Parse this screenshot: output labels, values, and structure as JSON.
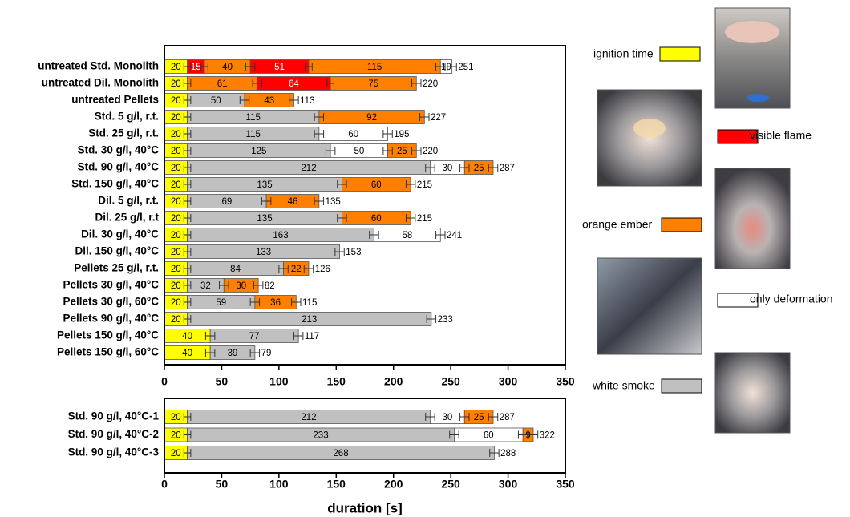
{
  "chart_data": [
    {
      "type": "bar",
      "orientation": "horizontal",
      "stacked": true,
      "series": [
        {
          "name": "ignition time",
          "color": "#ffff00"
        },
        {
          "name": "visible flame",
          "color": "#ff0000"
        },
        {
          "name": "orange ember",
          "color": "#ff7f00"
        },
        {
          "name": "only deformation",
          "color": "#ffffff"
        },
        {
          "name": "white smoke",
          "color": "#c0c0c0"
        }
      ],
      "xlim": [
        0,
        350
      ],
      "xticks": [
        0,
        50,
        100,
        150,
        200,
        250,
        300,
        350
      ],
      "rows": [
        {
          "label": "untreated Std. Monolith",
          "total": 251,
          "segments": [
            {
              "series": 0,
              "value": 20,
              "error": 3
            },
            {
              "series": 1,
              "value": 15,
              "error": 3
            },
            {
              "series": 2,
              "value": 40,
              "error": 4
            },
            {
              "series": 1,
              "value": 51,
              "error": 3
            },
            {
              "series": 2,
              "value": 115,
              "error": 4
            },
            {
              "series": 3,
              "value": 10,
              "error": 4
            }
          ]
        },
        {
          "label": "untreated Dil. Monolith",
          "total": 220,
          "segments": [
            {
              "series": 0,
              "value": 20,
              "error": 3
            },
            {
              "series": 2,
              "value": 61,
              "error": 4
            },
            {
              "series": 1,
              "value": 64,
              "error": 3
            },
            {
              "series": 2,
              "value": 75,
              "error": 4
            }
          ]
        },
        {
          "label": "untreated Pellets",
          "total": 113,
          "segments": [
            {
              "series": 0,
              "value": 20,
              "error": 3
            },
            {
              "series": 4,
              "value": 50,
              "error": 4
            },
            {
              "series": 2,
              "value": 43,
              "error": 4
            }
          ]
        },
        {
          "label": "Std. 5 g/l, r.t.",
          "total": 227,
          "segments": [
            {
              "series": 0,
              "value": 20,
              "error": 3
            },
            {
              "series": 4,
              "value": 115,
              "error": 4
            },
            {
              "series": 2,
              "value": 92,
              "error": 4
            }
          ]
        },
        {
          "label": "Std. 25 g/l, r.t.",
          "total": 195,
          "segments": [
            {
              "series": 0,
              "value": 20,
              "error": 3
            },
            {
              "series": 4,
              "value": 115,
              "error": 4
            },
            {
              "series": 3,
              "value": 60,
              "error": 4
            }
          ]
        },
        {
          "label": "Std. 30 g/l, 40°C",
          "total": 220,
          "segments": [
            {
              "series": 0,
              "value": 20,
              "error": 3
            },
            {
              "series": 4,
              "value": 125,
              "error": 4
            },
            {
              "series": 3,
              "value": 50,
              "error": 4
            },
            {
              "series": 2,
              "value": 25,
              "error": 4
            }
          ]
        },
        {
          "label": "Std. 90 g/l, 40°C",
          "total": 287,
          "segments": [
            {
              "series": 0,
              "value": 20,
              "error": 3
            },
            {
              "series": 4,
              "value": 212,
              "error": 4
            },
            {
              "series": 3,
              "value": 30,
              "error": 4
            },
            {
              "series": 2,
              "value": 25,
              "error": 4
            }
          ]
        },
        {
          "label": "Std. 150 g/l, 40°C",
          "total": 215,
          "segments": [
            {
              "series": 0,
              "value": 20,
              "error": 3
            },
            {
              "series": 4,
              "value": 135,
              "error": 4
            },
            {
              "series": 2,
              "value": 60,
              "error": 4
            }
          ]
        },
        {
          "label": "Dil. 5 g/l, r.t.",
          "total": 135,
          "segments": [
            {
              "series": 0,
              "value": 20,
              "error": 3
            },
            {
              "series": 4,
              "value": 69,
              "error": 4
            },
            {
              "series": 2,
              "value": 46,
              "error": 4
            }
          ]
        },
        {
          "label": "Dil. 25 g/l, r.t",
          "total": 215,
          "segments": [
            {
              "series": 0,
              "value": 20,
              "error": 3
            },
            {
              "series": 4,
              "value": 135,
              "error": 4
            },
            {
              "series": 2,
              "value": 60,
              "error": 4
            }
          ]
        },
        {
          "label": "Dil. 30 g/l, 40°C",
          "total": 241,
          "segments": [
            {
              "series": 0,
              "value": 20,
              "error": 3
            },
            {
              "series": 4,
              "value": 163,
              "error": 4
            },
            {
              "series": 3,
              "value": 58,
              "error": 4
            }
          ]
        },
        {
          "label": "Dil. 150 g/l, 40°C",
          "total": 153,
          "segments": [
            {
              "series": 0,
              "value": 20,
              "error": 3
            },
            {
              "series": 4,
              "value": 133,
              "error": 4
            }
          ]
        },
        {
          "label": "Pellets 25 g/l, r.t.",
          "total": 126,
          "segments": [
            {
              "series": 0,
              "value": 20,
              "error": 3
            },
            {
              "series": 4,
              "value": 84,
              "error": 4
            },
            {
              "series": 2,
              "value": 22,
              "error": 4
            }
          ]
        },
        {
          "label": "Pellets 30 g/l, 40°C",
          "total": 82,
          "segments": [
            {
              "series": 0,
              "value": 20,
              "error": 3
            },
            {
              "series": 4,
              "value": 32,
              "error": 4
            },
            {
              "series": 2,
              "value": 30,
              "error": 4
            }
          ]
        },
        {
          "label": "Pellets 30 g/l, 60°C",
          "total": 115,
          "segments": [
            {
              "series": 0,
              "value": 20,
              "error": 3
            },
            {
              "series": 4,
              "value": 59,
              "error": 4
            },
            {
              "series": 2,
              "value": 36,
              "error": 4
            }
          ]
        },
        {
          "label": "Pellets 90 g/l, 40°C",
          "total": 233,
          "segments": [
            {
              "series": 0,
              "value": 20,
              "error": 3
            },
            {
              "series": 4,
              "value": 213,
              "error": 4
            }
          ]
        },
        {
          "label": "Pellets 150 g/l, 40°C",
          "total": 117,
          "segments": [
            {
              "series": 0,
              "value": 40,
              "error": 4
            },
            {
              "series": 4,
              "value": 77,
              "error": 4
            }
          ]
        },
        {
          "label": "Pellets 150 g/l, 60°C",
          "total": 79,
          "segments": [
            {
              "series": 0,
              "value": 40,
              "error": 4
            },
            {
              "series": 4,
              "value": 39,
              "error": 4
            }
          ]
        }
      ]
    },
    {
      "type": "bar",
      "orientation": "horizontal",
      "stacked": true,
      "xlim": [
        0,
        350
      ],
      "xticks": [
        0,
        50,
        100,
        150,
        200,
        250,
        300,
        350
      ],
      "xlabel": "duration [s]",
      "rows": [
        {
          "label": "Std. 90 g/l, 40°C-1",
          "total": 287,
          "segments": [
            {
              "series": 0,
              "value": 20,
              "error": 3
            },
            {
              "series": 4,
              "value": 212,
              "error": 4
            },
            {
              "series": 3,
              "value": 30,
              "error": 4
            },
            {
              "series": 2,
              "value": 25,
              "error": 4
            }
          ]
        },
        {
          "label": "Std. 90 g/l, 40°C-2",
          "total": 322,
          "segments": [
            {
              "series": 0,
              "value": 20,
              "error": 3
            },
            {
              "series": 4,
              "value": 233,
              "error": 4
            },
            {
              "series": 3,
              "value": 60,
              "error": 4
            },
            {
              "series": 2,
              "value": 9,
              "error": 4
            }
          ]
        },
        {
          "label": "Std. 90 g/l, 40°C-3",
          "total": 288,
          "segments": [
            {
              "series": 0,
              "value": 20,
              "error": 3
            },
            {
              "series": 4,
              "value": 268,
              "error": 4
            }
          ]
        }
      ]
    }
  ]
}
